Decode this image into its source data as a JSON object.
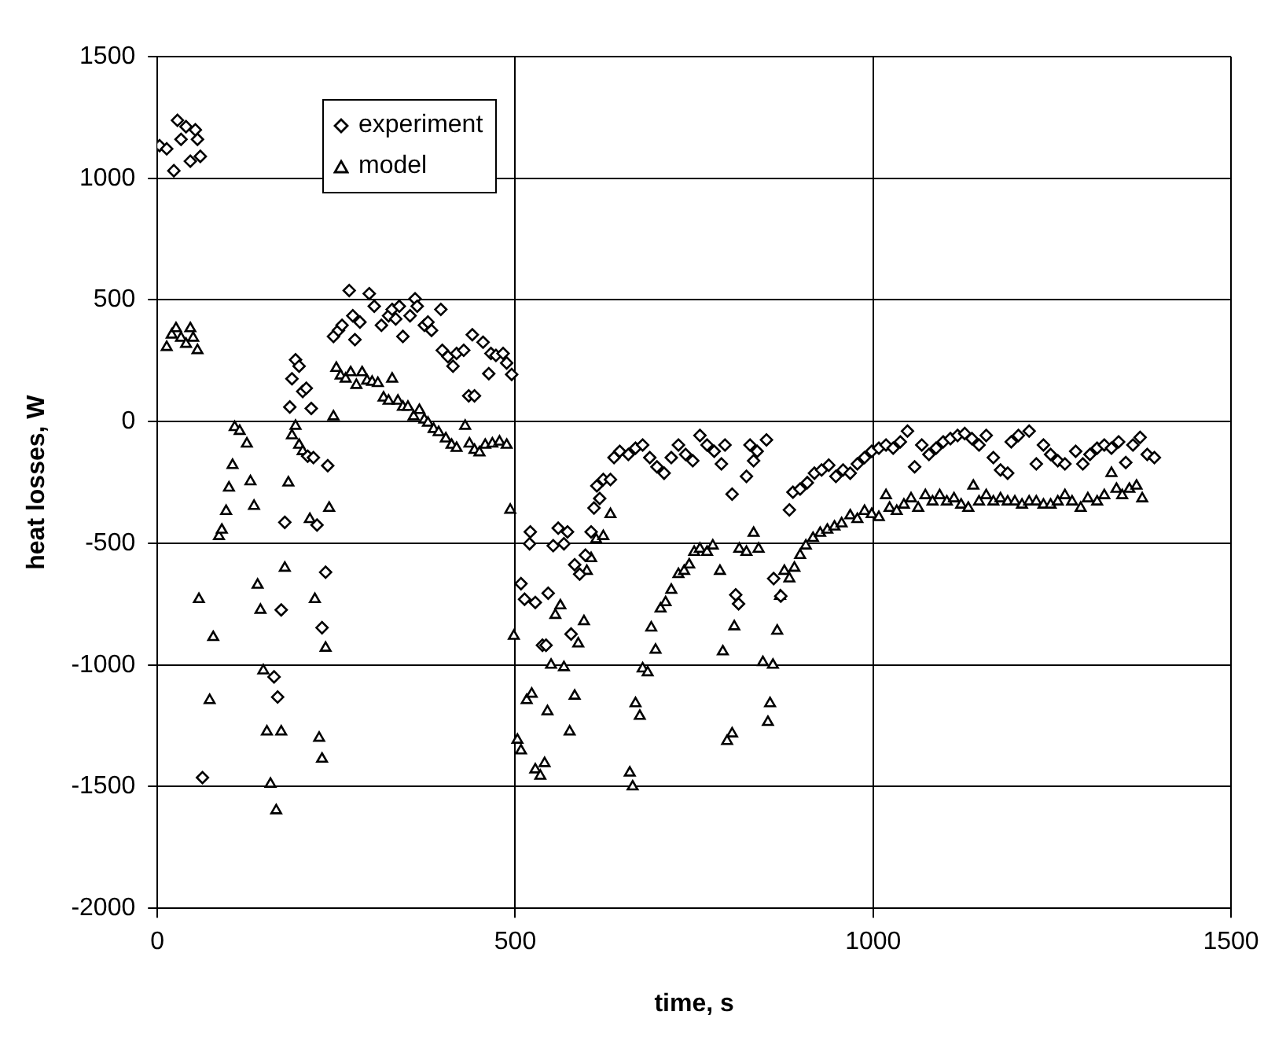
{
  "chart_data": {
    "type": "scatter",
    "xlabel": "time, s",
    "ylabel": "heat losses, W",
    "xlim": [
      0,
      1500
    ],
    "xticks": [
      0,
      500,
      1000,
      1500
    ],
    "ylim": [
      -2000,
      1500
    ],
    "yticks": [
      -2000,
      -1500,
      -1000,
      -500,
      0,
      500,
      1000,
      1500
    ],
    "grid": true,
    "legend": "top left",
    "series": [
      {
        "name": "experiment",
        "color": "#000000",
        "marker": "diamond",
        "x": [
          3,
          13,
          23,
          28,
          33,
          40,
          46,
          53,
          56,
          60,
          63,
          178,
          173,
          168,
          163,
          185,
          188,
          193,
          198,
          203,
          208,
          215,
          210,
          218,
          238,
          223,
          235,
          230,
          246,
          253,
          258,
          268,
          273,
          276,
          283,
          296,
          303,
          313,
          323,
          328,
          333,
          338,
          343,
          353,
          360,
          363,
          373,
          378,
          383,
          396,
          398,
          406,
          413,
          418,
          428,
          435,
          443,
          440,
          455,
          463,
          466,
          473,
          483,
          488,
          495,
          508,
          513,
          521,
          520,
          528,
          538,
          543,
          546,
          553,
          560,
          568,
          573,
          578,
          583,
          590,
          598,
          606,
          610,
          614,
          618,
          623,
          633,
          638,
          646,
          658,
          668,
          678,
          688,
          698,
          708,
          718,
          728,
          738,
          748,
          758,
          768,
          778,
          788,
          793,
          803,
          808,
          812,
          823,
          828,
          833,
          838,
          851,
          861,
          871,
          883,
          888,
          898,
          908,
          918,
          928,
          938,
          948,
          958,
          968,
          978,
          988,
          998,
          1008,
          1018,
          1028,
          1038,
          1048,
          1058,
          1068,
          1078,
          1088,
          1098,
          1108,
          1118,
          1128,
          1138,
          1148,
          1158,
          1168,
          1178,
          1188,
          1193,
          1203,
          1218,
          1228,
          1238,
          1248,
          1258,
          1268,
          1283,
          1293,
          1303,
          1313,
          1323,
          1333,
          1343,
          1353,
          1363,
          1373,
          1383,
          1393
        ],
        "values": [
          1134,
          1121,
          1031,
          1238,
          1160,
          1212,
          1070,
          1199,
          1160,
          1090,
          -1463,
          -414,
          -774,
          -1132,
          -1049,
          60,
          176,
          254,
          228,
          124,
          137,
          54,
          -142,
          -148,
          -181,
          -425,
          -619,
          -847,
          350,
          375,
          396,
          539,
          435,
          337,
          409,
          526,
          474,
          396,
          435,
          461,
          422,
          474,
          350,
          435,
          505,
          474,
          396,
          409,
          375,
          461,
          293,
          267,
          228,
          280,
          293,
          106,
          106,
          357,
          326,
          197,
          280,
          272,
          280,
          241,
          194,
          -666,
          -730,
          -453,
          -502,
          -743,
          -919,
          -919,
          -705,
          -510,
          -438,
          -502,
          -453,
          -873,
          -588,
          -627,
          -549,
          -453,
          -355,
          -264,
          -316,
          -238,
          -238,
          -148,
          -122,
          -135,
          -109,
          -96,
          -148,
          -186,
          -212,
          -148,
          -96,
          -135,
          -161,
          -57,
          -96,
          -122,
          -174,
          -96,
          -298,
          -712,
          -749,
          -225,
          -96,
          -161,
          -122,
          -75,
          -645,
          -717,
          -363,
          -290,
          -277,
          -251,
          -212,
          -199,
          -179,
          -225,
          -199,
          -212,
          -174,
          -148,
          -122,
          -109,
          -96,
          -109,
          -83,
          -39,
          -186,
          -96,
          -135,
          -109,
          -83,
          -70,
          -57,
          -49,
          -70,
          -96,
          -57,
          -148,
          -199,
          -212,
          -83,
          -57,
          -39,
          -174,
          -96,
          -135,
          -161,
          -174,
          -122,
          -174,
          -135,
          -109,
          -96,
          -109,
          -83,
          -168,
          -96,
          -65,
          -135,
          -148
        ]
      },
      {
        "name": "model",
        "color": "#000000",
        "marker": "triangle",
        "x": [
          13,
          20,
          26,
          33,
          40,
          46,
          50,
          56,
          58,
          78,
          73,
          86,
          90,
          96,
          100,
          105,
          108,
          115,
          125,
          130,
          135,
          140,
          144,
          148,
          153,
          158,
          166,
          173,
          178,
          183,
          188,
          193,
          198,
          203,
          213,
          220,
          226,
          230,
          235,
          240,
          246,
          250,
          256,
          263,
          270,
          278,
          286,
          293,
          300,
          308,
          316,
          323,
          328,
          336,
          343,
          350,
          358,
          366,
          373,
          378,
          386,
          393,
          403,
          411,
          418,
          430,
          436,
          443,
          450,
          458,
          468,
          478,
          488,
          493,
          498,
          503,
          508,
          516,
          523,
          528,
          535,
          541,
          545,
          550,
          556,
          563,
          568,
          576,
          583,
          588,
          596,
          600,
          606,
          613,
          623,
          633,
          660,
          664,
          668,
          674,
          678,
          685,
          690,
          696,
          703,
          710,
          718,
          728,
          736,
          743,
          750,
          758,
          768,
          776,
          786,
          790,
          796,
          803,
          806,
          813,
          823,
          833,
          840,
          846,
          853,
          856,
          860,
          866,
          870,
          876,
          883,
          890,
          898,
          906,
          916,
          926,
          936,
          946,
          956,
          968,
          978,
          988,
          998,
          1008,
          1018,
          1023,
          1033,
          1043,
          1053,
          1063,
          1073,
          1083,
          1093,
          1103,
          1113,
          1123,
          1133,
          1140,
          1148,
          1158,
          1168,
          1178,
          1188,
          1198,
          1208,
          1218,
          1228,
          1238,
          1248,
          1258,
          1268,
          1278,
          1290,
          1300,
          1313,
          1323,
          1333,
          1340,
          1348,
          1358,
          1368,
          1376
        ],
        "values": [
          306,
          357,
          383,
          344,
          319,
          383,
          344,
          293,
          -730,
          -886,
          -1145,
          -471,
          -445,
          -368,
          -272,
          -179,
          -23,
          -39,
          -91,
          -246,
          -347,
          -671,
          -774,
          -1023,
          -1274,
          -1489,
          -1598,
          -1274,
          -601,
          -251,
          -57,
          -18,
          -96,
          -122,
          -401,
          -730,
          -1300,
          -1386,
          -930,
          -355,
          21,
          220,
          189,
          176,
          202,
          150,
          202,
          168,
          163,
          158,
          98,
          85,
          176,
          85,
          60,
          60,
          21,
          47,
          8,
          -5,
          -31,
          -44,
          -70,
          -96,
          -109,
          -18,
          -91,
          -117,
          -127,
          -96,
          -91,
          -83,
          -96,
          -363,
          -881,
          -1308,
          -1352,
          -1145,
          -1119,
          -1430,
          -1456,
          -1404,
          -1191,
          -1000,
          -795,
          -756,
          -1010,
          -1274,
          -1127,
          -912,
          -821,
          -614,
          -562,
          -484,
          -471,
          -381,
          -1443,
          -1500,
          -1158,
          -1210,
          -1015,
          -1031,
          -847,
          -938,
          -769,
          -743,
          -692,
          -627,
          -614,
          -588,
          -536,
          -523,
          -536,
          -510,
          -614,
          -945,
          -1313,
          -1282,
          -842,
          -523,
          -536,
          -458,
          -523,
          -989,
          -1235,
          -1158,
          -1000,
          -860,
          -717,
          -614,
          -645,
          -601,
          -549,
          -510,
          -479,
          -458,
          -445,
          -432,
          -419,
          -386,
          -401,
          -368,
          -381,
          -393,
          -303,
          -355,
          -368,
          -342,
          -316,
          -355,
          -303,
          -329,
          -303,
          -329,
          -316,
          -342,
          -355,
          -264,
          -329,
          -303,
          -329,
          -316,
          -329,
          -329,
          -342,
          -329,
          -329,
          -342,
          -342,
          -329,
          -303,
          -329,
          -355,
          -316,
          -329,
          -303,
          -212,
          -277,
          -303,
          -277,
          -264,
          -316
        ]
      }
    ]
  }
}
